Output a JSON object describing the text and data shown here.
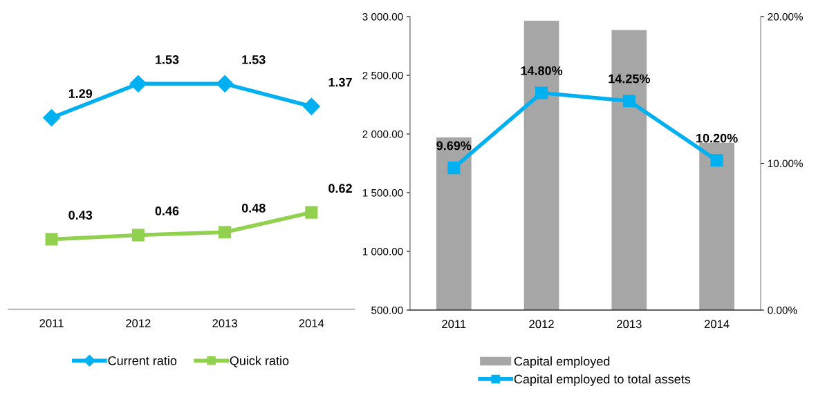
{
  "chart_data": [
    {
      "type": "line",
      "categories": [
        "2011",
        "2012",
        "2013",
        "2014"
      ],
      "series": [
        {
          "name": "Current ratio",
          "color": "#00b0f0",
          "marker": "diamond",
          "values": [
            1.29,
            1.53,
            1.53,
            1.37
          ]
        },
        {
          "name": "Quick ratio",
          "color": "#92d050",
          "marker": "square",
          "values": [
            0.43,
            0.46,
            0.48,
            0.62
          ]
        }
      ],
      "tick_labels": "x",
      "data_labels": true,
      "legend": "bottom",
      "grid": false
    },
    {
      "type": "bar",
      "categories": [
        "2011",
        "2012",
        "2013",
        "2014"
      ],
      "series": [
        {
          "name": "Capital employed",
          "type": "bar",
          "color": "#a6a6a6",
          "values": [
            1970,
            2965,
            2885,
            1925
          ]
        },
        {
          "name": "Capital employed to total assets",
          "type": "line",
          "axis": "y2",
          "color": "#00b0f0",
          "marker": "square",
          "values": [
            9.69,
            14.8,
            14.25,
            10.2
          ],
          "value_labels": [
            "9.69%",
            "14.80%",
            "14.25%",
            "10.20%"
          ]
        }
      ],
      "ylim": [
        500,
        3000
      ],
      "yticks": [
        {
          "value": 500,
          "label": "500.00"
        },
        {
          "value": 1000,
          "label": "1 000.00"
        },
        {
          "value": 1500,
          "label": "1 500.00"
        },
        {
          "value": 2000,
          "label": "2 000.00"
        },
        {
          "value": 2500,
          "label": "2 500.00"
        },
        {
          "value": 3000,
          "label": "3 000.00"
        }
      ],
      "y2lim": [
        0,
        20
      ],
      "y2ticks": [
        {
          "value": 0,
          "label": "0.00%"
        },
        {
          "value": 10,
          "label": "10.00%"
        },
        {
          "value": 20,
          "label": "20.00%"
        }
      ],
      "legend": "bottom",
      "grid": false
    }
  ]
}
